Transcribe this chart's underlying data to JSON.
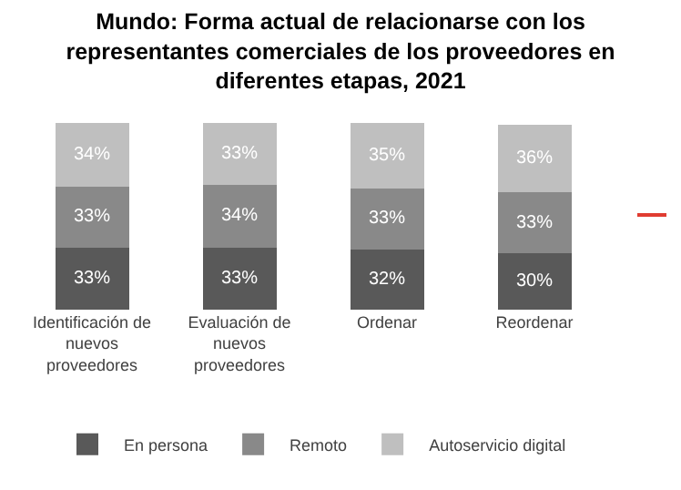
{
  "chart_data": {
    "type": "bar",
    "stacked": true,
    "title": "Mundo: Forma actual de relacionarse con los representantes comerciales de los proveedores en diferentes etapas, 2021",
    "categories": [
      "Identificación de nuevos proveedores",
      "Evaluación de nuevos proveedores",
      "Ordenar",
      "Reordenar"
    ],
    "series": [
      {
        "name": "En persona",
        "color": "#595959",
        "values": [
          33,
          33,
          32,
          30
        ],
        "value_labels": [
          "33%",
          "33%",
          "32%",
          "30%"
        ]
      },
      {
        "name": "Remoto",
        "color": "#898989",
        "values": [
          33,
          34,
          33,
          33
        ],
        "value_labels": [
          "33%",
          "34%",
          "33%",
          "33%"
        ]
      },
      {
        "name": "Autoservicio digital",
        "color": "#bfbfbf",
        "values": [
          34,
          33,
          35,
          36
        ],
        "value_labels": [
          "34%",
          "33%",
          "35%",
          "36%"
        ]
      }
    ],
    "legend": "bottom",
    "tick_labels": "x"
  }
}
